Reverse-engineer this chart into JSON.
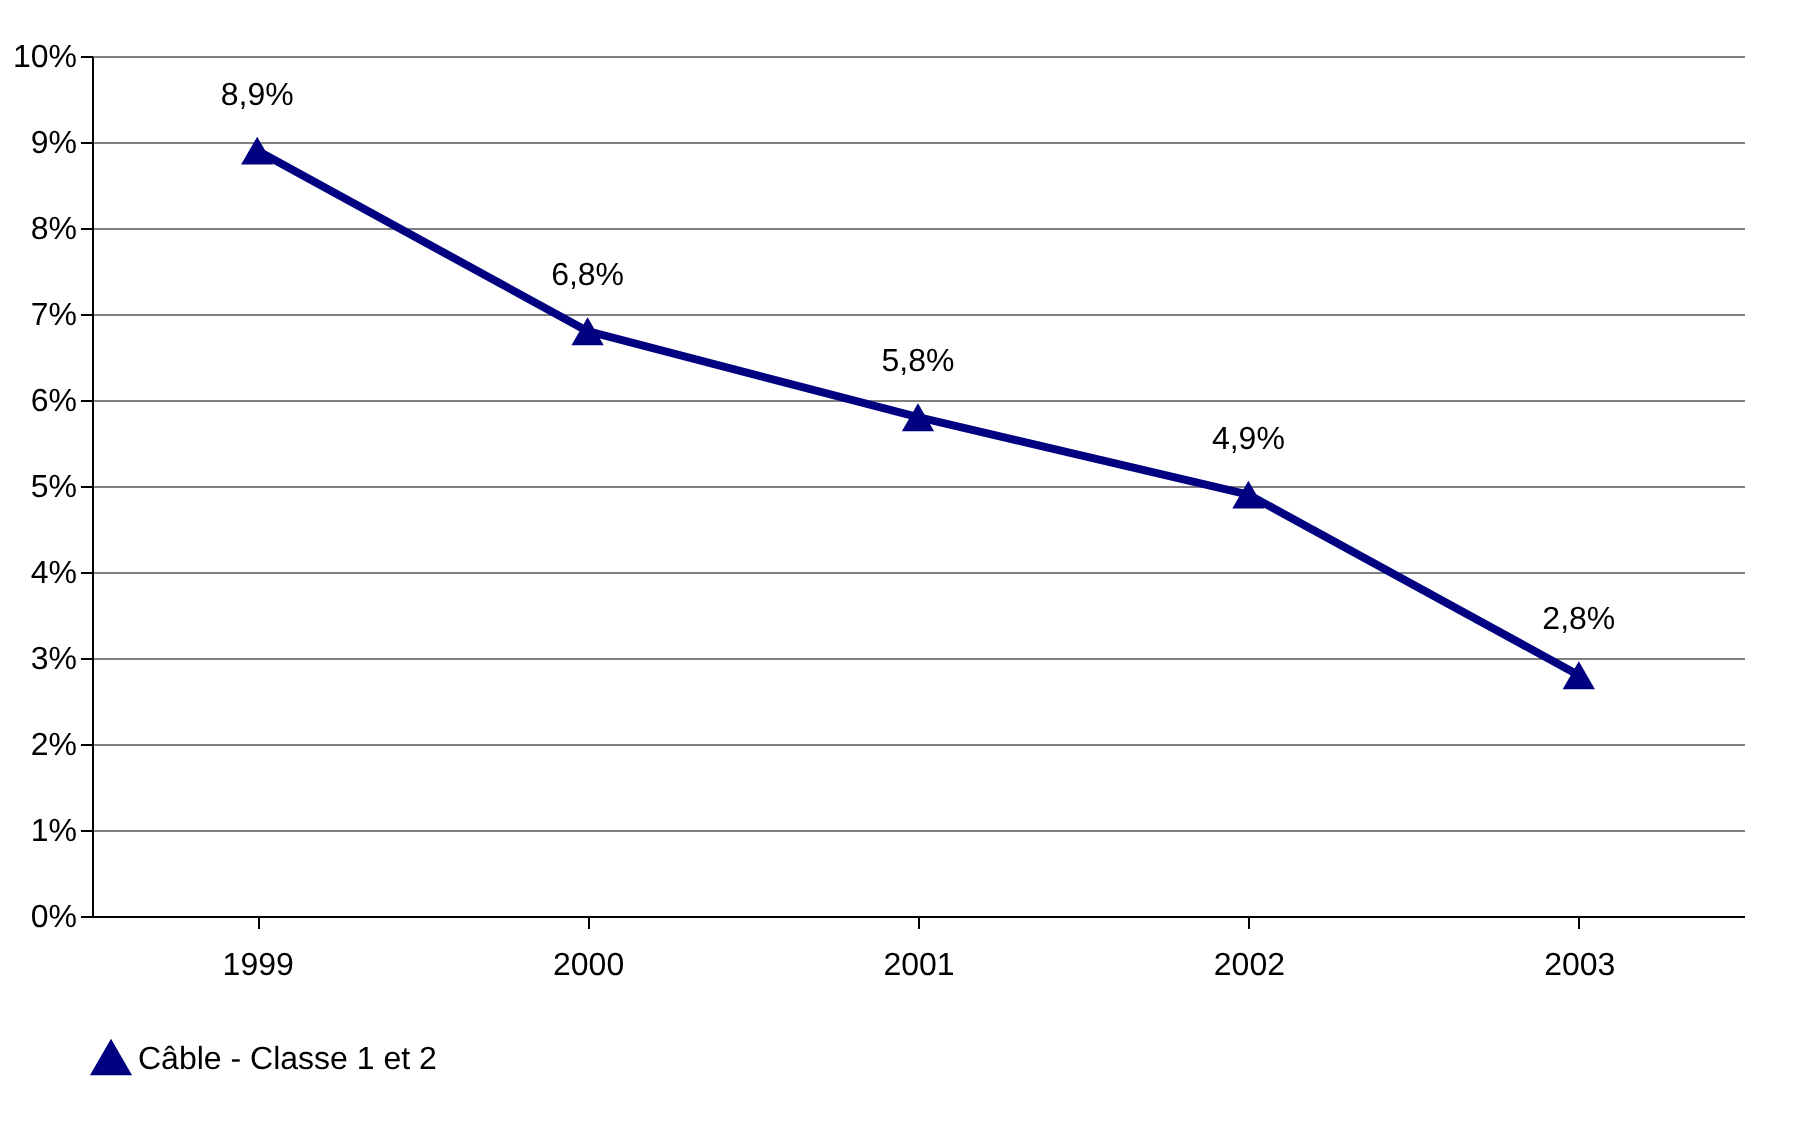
{
  "chart_data": {
    "type": "line",
    "categories": [
      "1999",
      "2000",
      "2001",
      "2002",
      "2003"
    ],
    "series": [
      {
        "name": "Câble - Classe 1 et 2",
        "color": "#000080",
        "values": [
          8.9,
          6.8,
          5.8,
          4.9,
          2.8
        ],
        "value_labels": [
          "8,9%",
          "6,8%",
          "5,8%",
          "4,9%",
          "2,8%"
        ]
      }
    ],
    "ylim": [
      0,
      10
    ],
    "yticks": [
      {
        "value": 0,
        "label": "0%"
      },
      {
        "value": 1,
        "label": "1%"
      },
      {
        "value": 2,
        "label": "2%"
      },
      {
        "value": 3,
        "label": "3%"
      },
      {
        "value": 4,
        "label": "4%"
      },
      {
        "value": 5,
        "label": "5%"
      },
      {
        "value": 6,
        "label": "6%"
      },
      {
        "value": 7,
        "label": "7%"
      },
      {
        "value": 8,
        "label": "8%"
      },
      {
        "value": 9,
        "label": "9%"
      },
      {
        "value": 10,
        "label": "10%"
      }
    ],
    "grid": "y",
    "legend": "bottom",
    "marker": "triangle",
    "line_style": "solid"
  }
}
